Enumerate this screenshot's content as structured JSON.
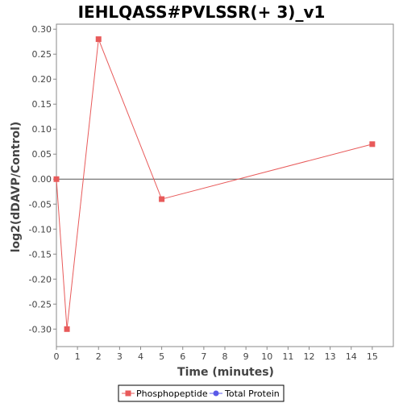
{
  "chart_data": {
    "type": "line",
    "title": "IEHLQASS#PVLSSR(+ 3)_v1",
    "xlabel": "Time (minutes)",
    "ylabel": "log2(dDAVP/Control)",
    "xlim": [
      0,
      16
    ],
    "ylim": [
      -0.335,
      0.31
    ],
    "x_ticks": [
      0,
      1,
      2,
      3,
      4,
      5,
      6,
      7,
      8,
      9,
      10,
      11,
      12,
      13,
      14,
      15
    ],
    "y_ticks": [
      0.3,
      0.25,
      0.2,
      0.15,
      0.1,
      0.05,
      0.0,
      -0.05,
      -0.1,
      -0.15,
      -0.2,
      -0.25,
      -0.3
    ],
    "x_tick_labels": [
      "0",
      "1",
      "2",
      "3",
      "4",
      "5",
      "6",
      "7",
      "8",
      "9",
      "10",
      "11",
      "12",
      "13",
      "14",
      "15"
    ],
    "y_tick_labels": [
      "0.30",
      "0.25",
      "0.20",
      "0.15",
      "0.10",
      "0.05",
      "0.00",
      "-0.05",
      "-0.10",
      "-0.15",
      "-0.20",
      "-0.25",
      "-0.30"
    ],
    "zero_line": true,
    "grid": false,
    "legend_position": "bottom",
    "series": [
      {
        "name": "Phosphopeptide",
        "color": "#e85a5a",
        "marker": "square",
        "points": [
          {
            "x": 0,
            "y": 0.0
          },
          {
            "x": 0.5,
            "y": -0.3
          },
          {
            "x": 2,
            "y": 0.28
          },
          {
            "x": 5,
            "y": -0.04
          },
          {
            "x": 15,
            "y": 0.07
          }
        ]
      },
      {
        "name": "Total Protein",
        "color": "#5a5ae8",
        "marker": "circle",
        "points": []
      }
    ]
  }
}
